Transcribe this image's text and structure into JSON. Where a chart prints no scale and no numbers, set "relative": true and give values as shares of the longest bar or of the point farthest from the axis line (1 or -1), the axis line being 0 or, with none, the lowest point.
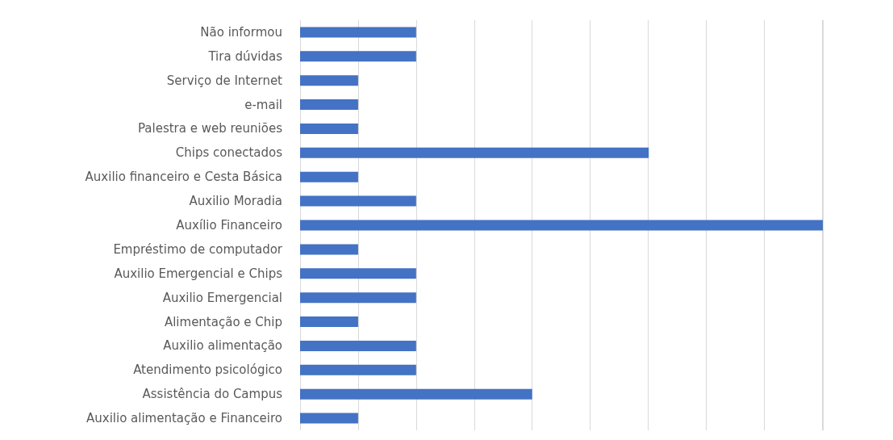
{
  "chart_data": {
    "type": "bar",
    "orientation": "horizontal",
    "relative": true,
    "grid": "x",
    "color": "#4472c4",
    "categories": [
      "Não informou",
      "Tira dúvidas",
      "Serviço de Internet",
      "e-mail",
      "Palestra e web reuniões",
      "Chips conectados",
      "Auxilio financeiro e Cesta Básica",
      "Auxilio Moradia",
      "Auxílio Financeiro",
      "Empréstimo de computador",
      "Auxilio Emergencial e Chips",
      "Auxilio Emergencial",
      "Alimentação e Chip",
      "Auxilio alimentação",
      "Atendimento psicológico",
      "Assistência do Campus",
      "Auxilio alimentação e Financeiro"
    ],
    "values": [
      0.222,
      0.222,
      0.111,
      0.111,
      0.111,
      0.667,
      0.111,
      0.222,
      1,
      0.111,
      0.222,
      0.222,
      0.111,
      0.222,
      0.222,
      0.444,
      0.111
    ]
  }
}
